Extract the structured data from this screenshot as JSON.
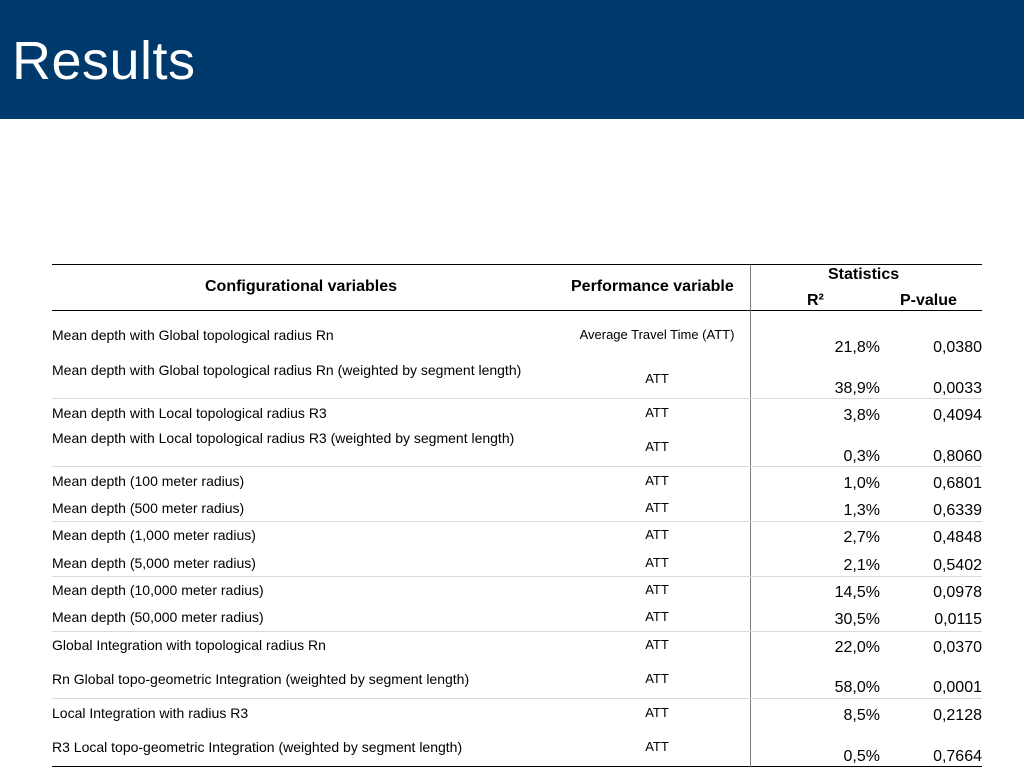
{
  "slide": {
    "title": "Results"
  },
  "table": {
    "headers": {
      "config": "Configurational variables",
      "performance": "Performance variable",
      "statistics": "Statistics",
      "r2": "R²",
      "pvalue": "P-value"
    },
    "rows": [
      {
        "variable": "Mean depth with Global topological radius Rn",
        "performance": "Average Travel Time (ATT)",
        "r2": "21,8%",
        "pvalue": "0,0380"
      },
      {
        "variable": "Mean depth with Global topological radius Rn (weighted by segment length)",
        "performance": "ATT",
        "r2": "38,9%",
        "pvalue": "0,0033"
      },
      {
        "variable": "Mean depth with Local topological radius R3",
        "performance": "ATT",
        "r2": "3,8%",
        "pvalue": "0,4094"
      },
      {
        "variable": "Mean depth with Local topological radius R3 (weighted by segment length)",
        "performance": "ATT",
        "r2": "0,3%",
        "pvalue": "0,8060"
      },
      {
        "variable": "Mean depth (100 meter radius)",
        "performance": "ATT",
        "r2": "1,0%",
        "pvalue": "0,6801"
      },
      {
        "variable": "Mean depth (500 meter radius)",
        "performance": "ATT",
        "r2": "1,3%",
        "pvalue": "0,6339"
      },
      {
        "variable": "Mean depth (1,000 meter radius)",
        "performance": "ATT",
        "r2": "2,7%",
        "pvalue": "0,4848"
      },
      {
        "variable": "Mean depth (5,000 meter radius)",
        "performance": "ATT",
        "r2": "2,1%",
        "pvalue": "0,5402"
      },
      {
        "variable": "Mean depth (10,000 meter radius)",
        "performance": "ATT",
        "r2": "14,5%",
        "pvalue": "0,0978"
      },
      {
        "variable": "Mean depth (50,000 meter radius)",
        "performance": "ATT",
        "r2": "30,5%",
        "pvalue": "0,0115"
      },
      {
        "variable": "Global Integration with topological radius Rn",
        "performance": "ATT",
        "r2": "22,0%",
        "pvalue": "0,0370"
      },
      {
        "variable": "Rn Global topo-geometric Integration (weighted by segment length)",
        "performance": "ATT",
        "r2": "58,0%",
        "pvalue": "0,0001"
      },
      {
        "variable": "Local Integration with radius R3",
        "performance": "ATT",
        "r2": "8,5%",
        "pvalue": "0,2128"
      },
      {
        "variable": "R3 Local topo-geometric Integration (weighted by segment length)",
        "performance": "ATT",
        "r2": "0,5%",
        "pvalue": "0,7664"
      }
    ]
  }
}
